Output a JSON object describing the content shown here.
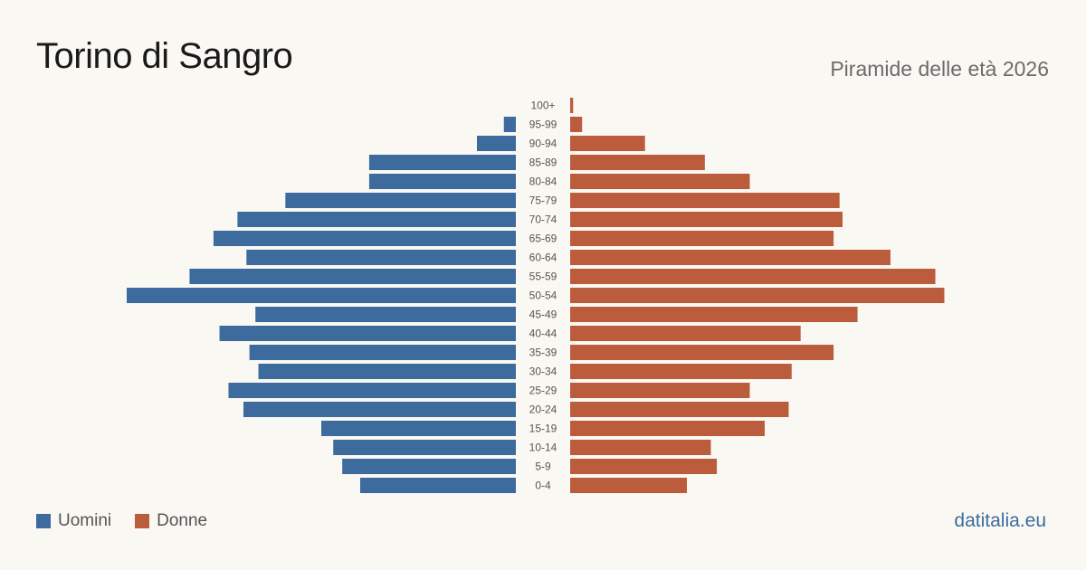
{
  "header": {
    "title": "Torino di Sangro",
    "subtitle": "Piramide delle età 2026"
  },
  "legend": {
    "men_label": "Uomini",
    "women_label": "Donne"
  },
  "source": "datitalia.eu",
  "colors": {
    "men": "#3d6b9e",
    "women": "#bb5d3d",
    "background": "#faf8f3",
    "label": "#555555",
    "source": "#3d6b9e"
  },
  "chart_data": {
    "type": "bar",
    "orientation": "horizontal-pyramid",
    "categories": [
      "100+",
      "95-99",
      "90-94",
      "85-89",
      "80-84",
      "75-79",
      "70-74",
      "65-69",
      "60-64",
      "55-59",
      "50-54",
      "45-49",
      "40-44",
      "35-39",
      "30-34",
      "25-29",
      "20-24",
      "15-19",
      "10-14",
      "5-9",
      "0-4"
    ],
    "series": [
      {
        "name": "Uomini",
        "values": [
          0,
          4,
          13,
          49,
          49,
          77,
          93,
          101,
          90,
          109,
          130,
          87,
          99,
          89,
          86,
          96,
          91,
          65,
          61,
          58,
          52
        ]
      },
      {
        "name": "Donne",
        "values": [
          1,
          4,
          25,
          45,
          60,
          90,
          91,
          88,
          107,
          122,
          125,
          96,
          77,
          88,
          74,
          60,
          73,
          65,
          47,
          49,
          39
        ]
      }
    ],
    "grid": false,
    "legend_position": "bottom-left"
  }
}
